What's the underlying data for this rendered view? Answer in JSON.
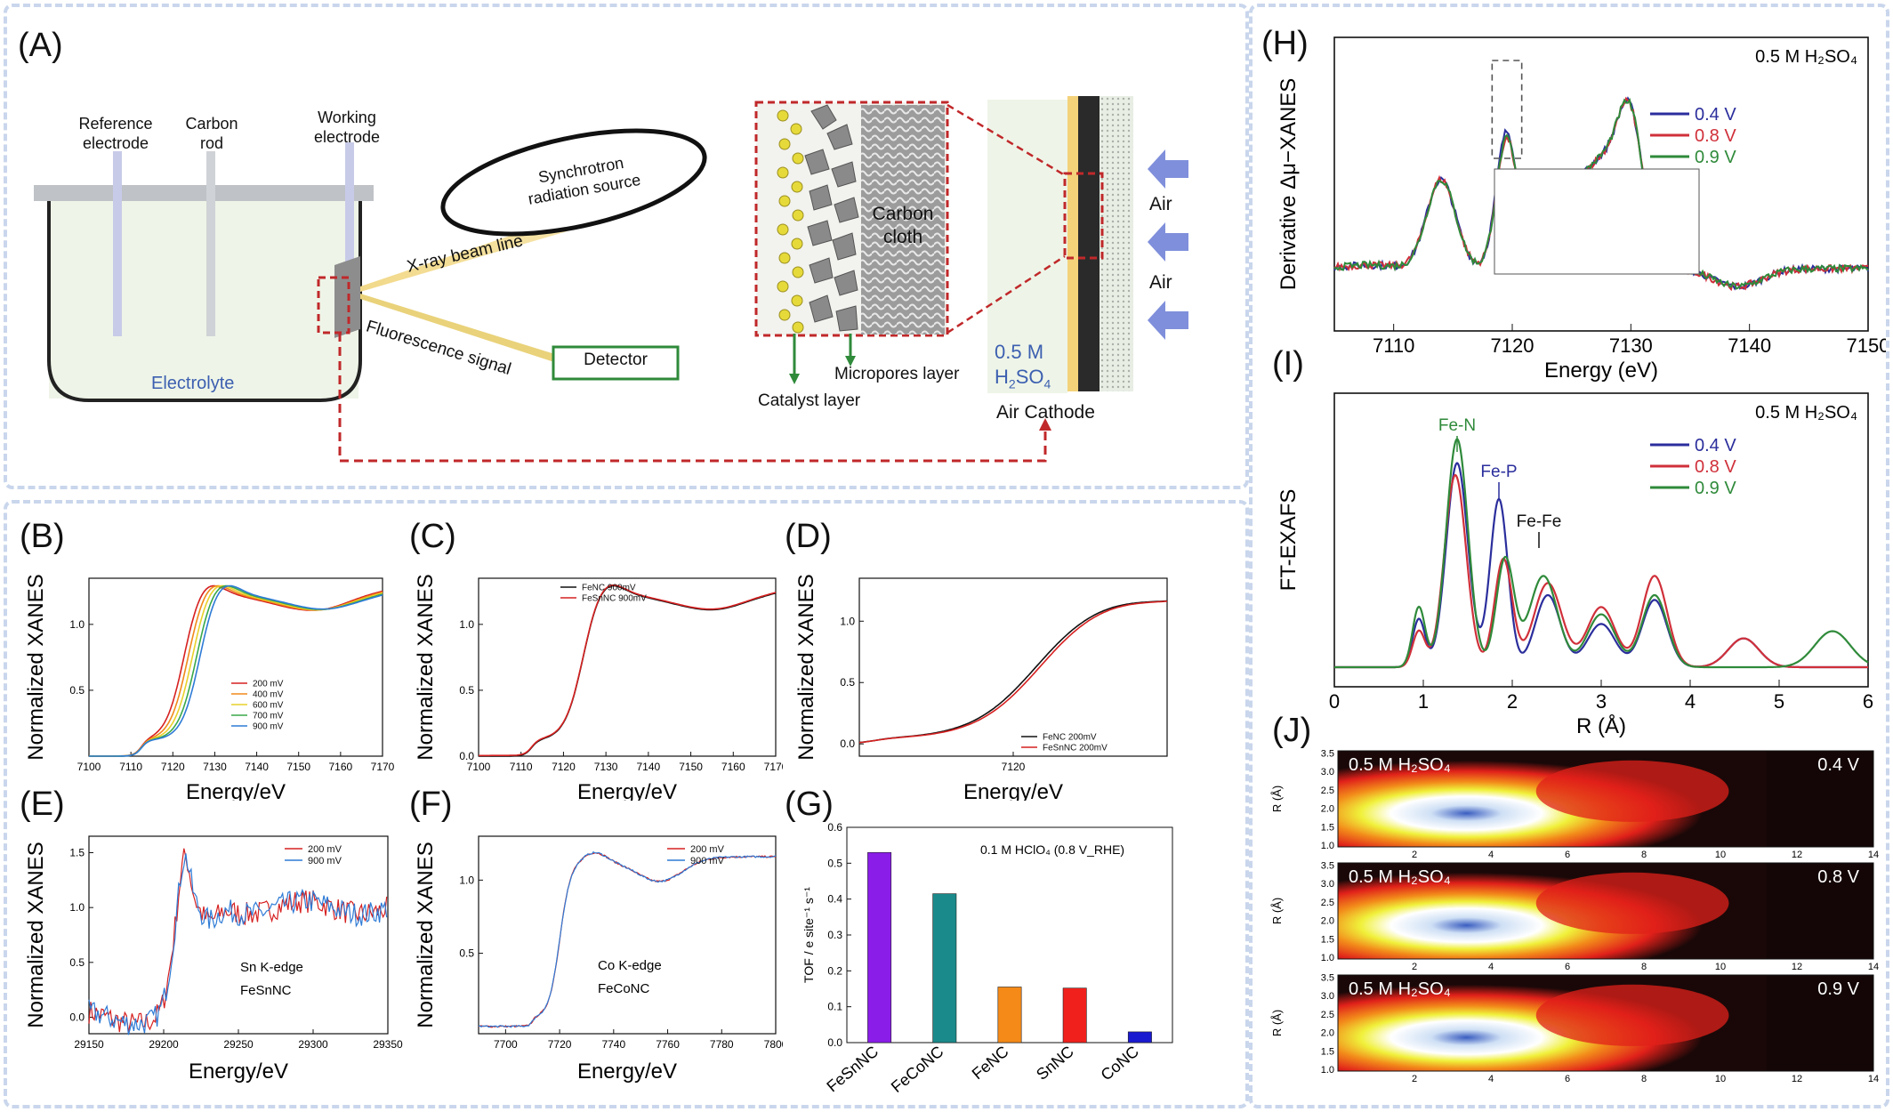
{
  "panel_labels": {
    "A": "(A)",
    "B": "(B)",
    "C": "(C)",
    "D": "(D)",
    "E": "(E)",
    "F": "(F)",
    "G": "(G)",
    "H": "(H)",
    "I": "(I)",
    "J": "(J)"
  },
  "schematic": {
    "reference_electrode": [
      "Reference",
      "electrode"
    ],
    "carbon_rod": [
      "Carbon",
      "rod"
    ],
    "working_electrode": [
      "Working",
      "electrode"
    ],
    "synchrotron": [
      "Synchrotron",
      "radiation source"
    ],
    "xray_beam": "X-ray beam line",
    "fluorescence": "Fluorescence signal",
    "detector": "Detector",
    "electrolyte": "Electrolyte",
    "carbon_cloth": [
      "Carbon",
      "cloth"
    ],
    "micropores": "Micropores layer",
    "catalyst_layer": "Catalyst layer",
    "conc": "0.5 M",
    "acid_main": "H",
    "acid_sub2": "2",
    "acid_tail": "SO",
    "acid_sub4": "4",
    "air": "Air",
    "air_cathode": "Air Cathode"
  },
  "colors": {
    "red": "#d62020",
    "orange": "#f08a1a",
    "yellow": "#e8d12a",
    "green": "#3aa84a",
    "blue": "#2e7bd6",
    "navy": "#2b2e9c",
    "dkgreen": "#2f8a3a",
    "dkred": "#d0303a",
    "black": "#111111",
    "frame": "#c9d6ec"
  },
  "chart_data": [
    {
      "id": "B",
      "type": "line",
      "xlabel": "Energy/eV",
      "ylabel": "Normalized XANES",
      "xlim": [
        7100,
        7170
      ],
      "ylim": [
        0,
        1.35
      ],
      "xticks": [
        "7100",
        "7110",
        "7120",
        "7130",
        "7140",
        "7150",
        "7160",
        "7170"
      ],
      "yticks": [
        "0.5",
        "1.0"
      ],
      "series": [
        {
          "name": "200 mV",
          "color": "#d62020",
          "edge": 7122.5
        },
        {
          "name": "400 mV",
          "color": "#f08a1a",
          "edge": 7123.5
        },
        {
          "name": "600 mV",
          "color": "#e8d12a",
          "edge": 7124.5
        },
        {
          "name": "700 mV",
          "color": "#3aa84a",
          "edge": 7125.5
        },
        {
          "name": "900 mV",
          "color": "#2e7bd6",
          "edge": 7126.3
        }
      ]
    },
    {
      "id": "C",
      "type": "line",
      "xlabel": "Energy/eV",
      "ylabel": "Normalized XANES",
      "xlim": [
        7100,
        7170
      ],
      "ylim": [
        0,
        1.35
      ],
      "xticks": [
        "7100",
        "7110",
        "7120",
        "7130",
        "7140",
        "7150",
        "7160",
        "7170"
      ],
      "yticks": [
        "0.0",
        "0.5",
        "1.0"
      ],
      "series": [
        {
          "name": "FeNC 900mV",
          "color": "#111111"
        },
        {
          "name": "FeSnNC 900mV",
          "color": "#d62020"
        }
      ]
    },
    {
      "id": "D",
      "type": "line",
      "xlabel": "Energy/eV",
      "ylabel": "Normalized XANES",
      "xlim": [
        7100,
        7140
      ],
      "ylim": [
        -0.1,
        1.35
      ],
      "xticks": [
        "7120"
      ],
      "yticks": [
        "0.0",
        "0.5",
        "1.0"
      ],
      "series": [
        {
          "name": "FeNC 200mV",
          "color": "#111111"
        },
        {
          "name": "FeSnNC 200mV",
          "color": "#d62020"
        }
      ]
    },
    {
      "id": "E",
      "type": "line",
      "xlabel": "Energy/eV",
      "ylabel": "Normalized XANES",
      "xlim": [
        29150,
        29350
      ],
      "ylim": [
        -0.15,
        1.65
      ],
      "xticks": [
        "29150",
        "29200",
        "29250",
        "29300",
        "29350"
      ],
      "yticks": [
        "0.0",
        "0.5",
        "1.0",
        "1.5"
      ],
      "annotation": [
        "Sn K-edge",
        "FeSnNC"
      ],
      "series": [
        {
          "name": "200 mV",
          "color": "#d62020"
        },
        {
          "name": "900 mV",
          "color": "#2e7bd6"
        }
      ]
    },
    {
      "id": "F",
      "type": "line",
      "xlabel": "Energy/eV",
      "ylabel": "Normalized XANES",
      "xlim": [
        7690,
        7800
      ],
      "ylim": [
        -0.05,
        1.3
      ],
      "xticks": [
        "7700",
        "7720",
        "7740",
        "7760",
        "7780",
        "7800"
      ],
      "yticks": [
        "0.5",
        "1.0"
      ],
      "annotation": [
        "Co K-edge",
        "FeCoNC"
      ],
      "series": [
        {
          "name": "200 mV",
          "color": "#d62020"
        },
        {
          "name": "900 mV",
          "color": "#2e7bd6"
        }
      ]
    },
    {
      "id": "G",
      "type": "bar",
      "ylabel": "TOF / e site⁻¹ s⁻¹",
      "ylim": [
        0,
        0.6
      ],
      "yticks": [
        "0.0",
        "0.1",
        "0.2",
        "0.3",
        "0.4",
        "0.5",
        "0.6"
      ],
      "annotation": "0.1 M HClO₄ (0.8 V_RHE)",
      "categories": [
        "FeSnNC",
        "FeCoNC",
        "FeNC",
        "SnNC",
        "CoNC"
      ],
      "values": [
        0.53,
        0.415,
        0.155,
        0.152,
        0.03
      ],
      "colors": [
        "#8a1de8",
        "#1b8a8a",
        "#f58a18",
        "#f0201c",
        "#1a1ad0"
      ]
    },
    {
      "id": "H",
      "type": "line",
      "xlabel": "Energy (eV)",
      "ylabel": "Derivative Δμ−XANES",
      "xlim": [
        7105,
        7150
      ],
      "xticks": [
        "7110",
        "7120",
        "7130",
        "7140",
        "7150"
      ],
      "annotation": "0.5 M H₂SO₄",
      "series": [
        {
          "name": "0.4 V",
          "color": "#2b2e9c"
        },
        {
          "name": "0.8 V",
          "color": "#d0303a"
        },
        {
          "name": "0.9 V",
          "color": "#2f8a3a"
        }
      ]
    },
    {
      "id": "I",
      "type": "line",
      "xlabel": "R (Å)",
      "ylabel": "FT-EXAFS",
      "xlim": [
        0,
        6
      ],
      "xticks": [
        "0",
        "1",
        "2",
        "3",
        "4",
        "5",
        "6"
      ],
      "annotation": "0.5 M H₂SO₄",
      "peaks": [
        "Fe-N",
        "Fe-P",
        "Fe-Fe"
      ],
      "series": [
        {
          "name": "0.4 V",
          "color": "#2b2e9c"
        },
        {
          "name": "0.8 V",
          "color": "#d0303a"
        },
        {
          "name": "0.9 V",
          "color": "#2f8a3a"
        }
      ]
    },
    {
      "id": "J",
      "type": "heatmap",
      "ylabel": "R (Å)",
      "xlim": [
        0,
        14
      ],
      "xticks": [
        "2",
        "4",
        "6",
        "8",
        "10",
        "12",
        "14"
      ],
      "yticks": [
        "1.0",
        "1.5",
        "2.0",
        "2.5",
        "3.0",
        "3.5"
      ],
      "maps": [
        {
          "label": "0.5 M H₂SO₄",
          "potential": "0.4 V"
        },
        {
          "label": "0.5 M H₂SO₄",
          "potential": "0.8 V"
        },
        {
          "label": "0.5 M H₂SO₄",
          "potential": "0.9 V"
        }
      ]
    }
  ]
}
